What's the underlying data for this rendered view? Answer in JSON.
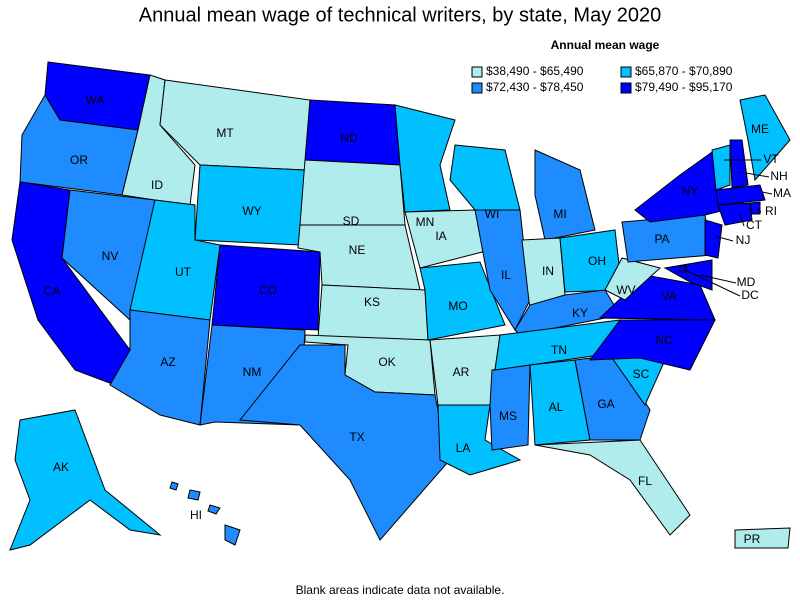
{
  "title": "Annual mean wage of technical writers, by state, May 2020",
  "legend": {
    "title": "Annual mean wage",
    "items": [
      {
        "label": "$38,490 - $65,490",
        "color": "#b0ecec"
      },
      {
        "label": "$65,870 - $70,890",
        "color": "#00c0ff"
      },
      {
        "label": "$72,430 - $78,450",
        "color": "#1e8cff"
      },
      {
        "label": "$79,490 - $95,170",
        "color": "#0000ff"
      }
    ]
  },
  "states": [
    {
      "label": "WA",
      "color": "#0000ff"
    },
    {
      "label": "OR",
      "color": "#1e8cff"
    },
    {
      "label": "CA",
      "color": "#0000ff"
    },
    {
      "label": "NV",
      "color": "#1e8cff"
    },
    {
      "label": "ID",
      "color": "#b0ecec"
    },
    {
      "label": "MT",
      "color": "#b0ecec"
    },
    {
      "label": "WY",
      "color": "#00c0ff"
    },
    {
      "label": "UT",
      "color": "#00c0ff"
    },
    {
      "label": "AZ",
      "color": "#1e8cff"
    },
    {
      "label": "CO",
      "color": "#0000ff"
    },
    {
      "label": "NM",
      "color": "#1e8cff"
    },
    {
      "label": "ND",
      "color": "#0000ff"
    },
    {
      "label": "SD",
      "color": "#b0ecec"
    },
    {
      "label": "NE",
      "color": "#b0ecec"
    },
    {
      "label": "KS",
      "color": "#b0ecec"
    },
    {
      "label": "OK",
      "color": "#b0ecec"
    },
    {
      "label": "TX",
      "color": "#1e8cff"
    },
    {
      "label": "MN",
      "color": "#00c0ff"
    },
    {
      "label": "IA",
      "color": "#b0ecec"
    },
    {
      "label": "MO",
      "color": "#00c0ff"
    },
    {
      "label": "AR",
      "color": "#b0ecec"
    },
    {
      "label": "LA",
      "color": "#00c0ff"
    },
    {
      "label": "WI",
      "color": "#00c0ff"
    },
    {
      "label": "IL",
      "color": "#1e8cff"
    },
    {
      "label": "MS",
      "color": "#1e8cff"
    },
    {
      "label": "MI",
      "color": "#1e8cff"
    },
    {
      "label": "IN",
      "color": "#b0ecec"
    },
    {
      "label": "OH",
      "color": "#00c0ff"
    },
    {
      "label": "KY",
      "color": "#1e8cff"
    },
    {
      "label": "TN",
      "color": "#00c0ff"
    },
    {
      "label": "AL",
      "color": "#00c0ff"
    },
    {
      "label": "GA",
      "color": "#1e8cff"
    },
    {
      "label": "FL",
      "color": "#b0ecec"
    },
    {
      "label": "SC",
      "color": "#00c0ff"
    },
    {
      "label": "NC",
      "color": "#0000ff"
    },
    {
      "label": "VA",
      "color": "#0000ff"
    },
    {
      "label": "WV",
      "color": "#b0ecec"
    },
    {
      "label": "PA",
      "color": "#1e8cff"
    },
    {
      "label": "NY",
      "color": "#0000ff"
    },
    {
      "label": "ME",
      "color": "#00c0ff"
    },
    {
      "label": "VT",
      "color": "#00c0ff"
    },
    {
      "label": "NH",
      "color": "#0000ff"
    },
    {
      "label": "MA",
      "color": "#0000ff"
    },
    {
      "label": "RI",
      "color": "#0000ff"
    },
    {
      "label": "CT",
      "color": "#0000ff"
    },
    {
      "label": "NJ",
      "color": "#0000ff"
    },
    {
      "label": "MD",
      "color": "#0000ff"
    },
    {
      "label": "DC",
      "color": "#0000ff"
    },
    {
      "label": "AK",
      "color": "#00c0ff"
    },
    {
      "label": "HI",
      "color": "#1e8cff"
    },
    {
      "label": "PR",
      "color": "#b0ecec"
    }
  ],
  "footnote": "Blank areas indicate data not available."
}
